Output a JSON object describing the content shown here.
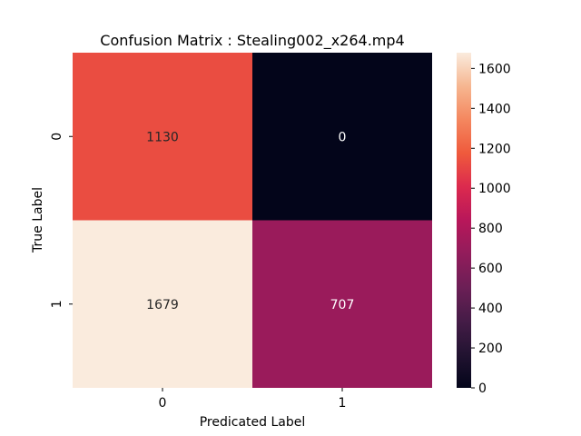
{
  "chart_data": {
    "type": "heatmap",
    "title": "Confusion Matrix : Stealing002_x264.mp4",
    "xlabel": "Predicated Label",
    "ylabel": "True Label",
    "x_categories": [
      "0",
      "1"
    ],
    "y_categories": [
      "0",
      "1"
    ],
    "values": [
      [
        1130,
        0
      ],
      [
        1679,
        707
      ]
    ],
    "colorbar": {
      "min": 0,
      "max": 1679,
      "ticks": [
        0,
        200,
        400,
        600,
        800,
        1000,
        1200,
        1400,
        1600
      ],
      "colormap": "rocket"
    },
    "grid": false
  }
}
